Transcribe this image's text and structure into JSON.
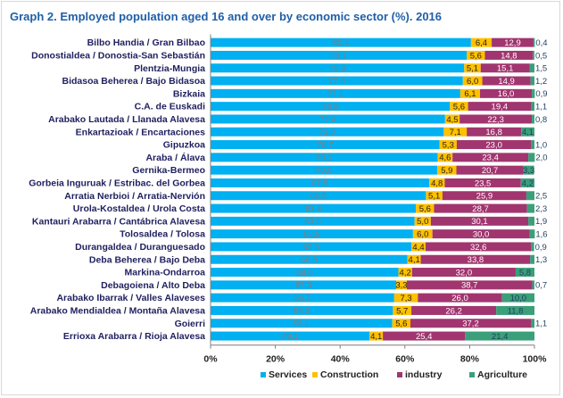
{
  "chart_data": {
    "type": "bar",
    "orientation": "horizontal",
    "stacked": true,
    "title": "Graph 2. Employed population aged 16 and over by economic sector (%). 2016",
    "categories": [
      "Bilbo Handia  /  Gran Bilbao",
      "Donostialdea  /  Donostia-San Sebastián",
      "Plentzia-Mungia",
      "Bidasoa Beherea  /  Bajo Bidasoa",
      "Bizkaia",
      "C.A. de Euskadi",
      "Arabako Lautada  /  Llanada Alavesa",
      "Enkartazioak  /  Encartaciones",
      "Gipuzkoa",
      "Araba  /  Álava",
      "Gernika-Bermeo",
      "Gorbeia Inguruak  /  Estribac. del Gorbea",
      "Arratia Nerbioi  /  Arratia-Nervión",
      "Urola-Kostaldea  /  Urola Costa",
      "Kantauri Arabarra  /  Cantábrica Alavesa",
      "Tolosaldea  /  Tolosa",
      "Durangaldea  /  Duranguesado",
      "Deba Beherea  /  Bajo Deba",
      "Markina-Ondarroa",
      "Debagoiena  /  Alto Deba",
      "Arabako Ibarrak  /  Valles Alaveses",
      "Arabako Mendialdea  /  Montaña Alavesa",
      "Goierri",
      "Errioxa Arabarra  /  Rioja Alavesa"
    ],
    "series": [
      {
        "name": "Services",
        "color": "#00b0f0",
        "label_color": "#7f7f7f",
        "labels": [
          "80,4",
          "79,1",
          "78,3",
          "77,9",
          "77,1",
          "73,9",
          "72,4",
          "72,0",
          "70,7",
          "70,1",
          "70,0",
          "67,5",
          "66,5",
          "63,4",
          "63,0",
          "62,5",
          "62,0",
          "60,8",
          "58,0",
          "57,3",
          "56,7",
          "56,3",
          "56,1",
          "49,1"
        ],
        "values": [
          80.4,
          79.1,
          78.3,
          77.9,
          77.1,
          73.9,
          72.4,
          72.0,
          70.7,
          70.1,
          70.0,
          67.5,
          66.5,
          63.4,
          63.0,
          62.5,
          62.0,
          60.8,
          58.0,
          57.3,
          56.7,
          56.3,
          56.1,
          49.1
        ]
      },
      {
        "name": "Construction",
        "color": "#ffc000",
        "label_color": "#1f1f1f",
        "labels": [
          "6,4",
          "5,6",
          "5,1",
          "6,0",
          "6,1",
          "5,6",
          "4,5",
          "7,1",
          "5,3",
          "4,6",
          "5,9",
          "4,8",
          "5,1",
          "5,6",
          "5,0",
          "6,0",
          "4,4",
          "4,1",
          "4,2",
          "3,3",
          "7,3",
          "5,7",
          "5,6",
          "4,1"
        ],
        "values": [
          6.4,
          5.6,
          5.1,
          6.0,
          6.1,
          5.6,
          4.5,
          7.1,
          5.3,
          4.6,
          5.9,
          4.8,
          5.1,
          5.6,
          5.0,
          6.0,
          4.4,
          4.1,
          4.2,
          3.3,
          7.3,
          5.7,
          5.6,
          4.1
        ]
      },
      {
        "name": "industry",
        "color": "#a1356f",
        "label_color": "#ffffff",
        "labels": [
          "12,9",
          "14,8",
          "15,1",
          "14,9",
          "16,0",
          "19,4",
          "22,3",
          "16,8",
          "23,0",
          "23,4",
          "20,7",
          "23,5",
          "25,9",
          "28,7",
          "30,1",
          "30,0",
          "32,6",
          "33,8",
          "32,0",
          "38,7",
          "26,0",
          "26,2",
          "37,2",
          "25,4"
        ],
        "values": [
          12.9,
          14.8,
          15.1,
          14.9,
          16.0,
          19.4,
          22.3,
          16.8,
          23.0,
          23.4,
          20.7,
          23.5,
          25.9,
          28.7,
          30.1,
          30.0,
          32.6,
          33.8,
          32.0,
          38.7,
          26.0,
          26.2,
          37.2,
          25.4
        ]
      },
      {
        "name": "Agriculture",
        "color": "#3b9f7a",
        "label_color": "#1f3f5f",
        "labels": [
          "0,4",
          "0,5",
          "1,5",
          "1,2",
          "0,9",
          "1,1",
          "0,8",
          "4,1",
          "1,0",
          "2,0",
          "3,3",
          "4,2",
          "2,5",
          "2,3",
          "1,9",
          "1,6",
          "0,9",
          "1,3",
          "5,8",
          "0,7",
          "10,0",
          "11,8",
          "1,1",
          "21,4"
        ],
        "values": [
          0.4,
          0.5,
          1.5,
          1.2,
          0.9,
          1.1,
          0.8,
          4.1,
          1.0,
          2.0,
          3.3,
          4.2,
          2.5,
          2.3,
          1.9,
          1.6,
          0.9,
          1.3,
          5.8,
          0.7,
          10.0,
          11.8,
          1.1,
          21.4
        ]
      }
    ],
    "x_ticks": [
      "0%",
      "20%",
      "40%",
      "60%",
      "80%",
      "100%"
    ],
    "xlim": [
      0,
      100
    ],
    "legend": [
      "Services",
      "Construction",
      "industry",
      "Agriculture"
    ],
    "legend_position": "bottom",
    "grid": false
  }
}
